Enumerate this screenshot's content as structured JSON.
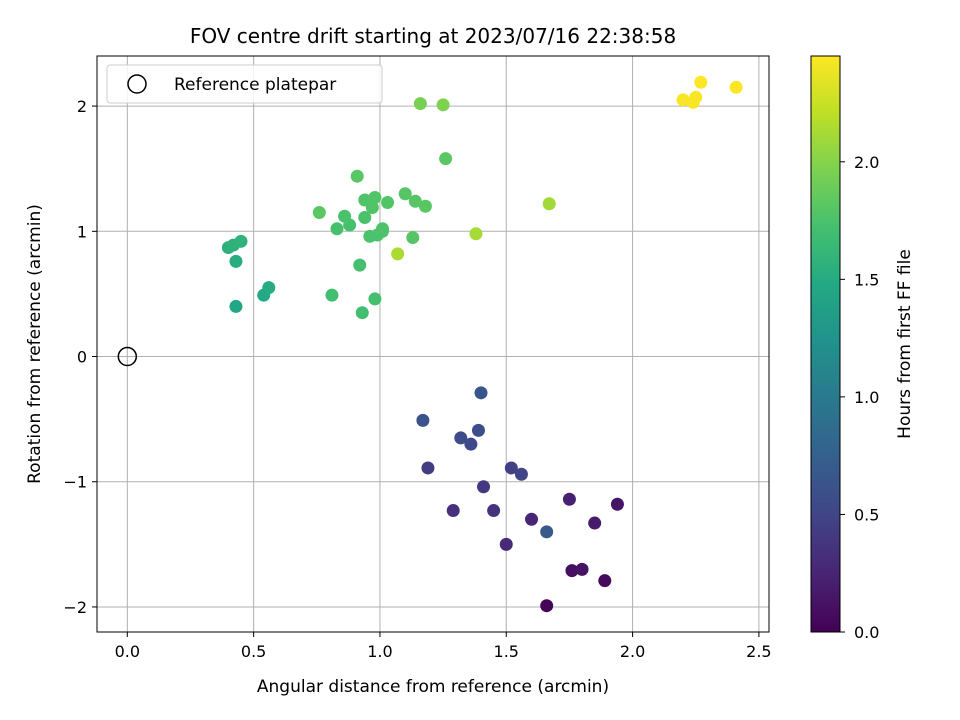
{
  "chart_data": {
    "type": "scatter",
    "title": "FOV centre drift starting at 2023/07/16 22:38:58",
    "xlabel": "Angular distance from reference (arcmin)",
    "ylabel": "Rotation from reference (arcmin)",
    "xlim": [
      -0.12,
      2.54
    ],
    "ylim": [
      -2.2,
      2.4
    ],
    "xticks": [
      0.0,
      0.5,
      1.0,
      1.5,
      2.0,
      2.5
    ],
    "xtick_labels": [
      "0.0",
      "0.5",
      "1.0",
      "1.5",
      "2.0",
      "2.5"
    ],
    "yticks": [
      -2,
      -1,
      0,
      1,
      2
    ],
    "ytick_labels": [
      "−2",
      "−1",
      "0",
      "1",
      "2"
    ],
    "grid": true,
    "legend": {
      "location": "upper-left",
      "entries": [
        "Reference platepar"
      ]
    },
    "reference_point": {
      "x": 0.0,
      "y": 0.0
    },
    "colorbar": {
      "label": "Hours from first FF file",
      "range": [
        0.0,
        2.45
      ],
      "ticks": [
        0.0,
        0.5,
        1.0,
        1.5,
        2.0
      ],
      "tick_labels": [
        "0.0",
        "0.5",
        "1.0",
        "1.5",
        "2.0"
      ],
      "colormap": "viridis"
    },
    "points": [
      {
        "x": 1.66,
        "y": -1.99,
        "h": 0.02
      },
      {
        "x": 1.89,
        "y": -1.79,
        "h": 0.06
      },
      {
        "x": 1.76,
        "y": -1.71,
        "h": 0.09
      },
      {
        "x": 1.8,
        "y": -1.7,
        "h": 0.12
      },
      {
        "x": 1.94,
        "y": -1.18,
        "h": 0.14
      },
      {
        "x": 1.85,
        "y": -1.33,
        "h": 0.18
      },
      {
        "x": 1.75,
        "y": -1.14,
        "h": 0.22
      },
      {
        "x": 1.6,
        "y": -1.3,
        "h": 0.26
      },
      {
        "x": 1.5,
        "y": -1.5,
        "h": 0.29
      },
      {
        "x": 1.29,
        "y": -1.23,
        "h": 0.33
      },
      {
        "x": 1.45,
        "y": -1.23,
        "h": 0.36
      },
      {
        "x": 1.41,
        "y": -1.04,
        "h": 0.4
      },
      {
        "x": 1.19,
        "y": -0.89,
        "h": 0.44
      },
      {
        "x": 1.52,
        "y": -0.89,
        "h": 0.46
      },
      {
        "x": 1.56,
        "y": -0.94,
        "h": 0.5
      },
      {
        "x": 1.36,
        "y": -0.7,
        "h": 0.53
      },
      {
        "x": 1.32,
        "y": -0.65,
        "h": 0.56
      },
      {
        "x": 1.39,
        "y": -0.59,
        "h": 0.58
      },
      {
        "x": 1.17,
        "y": -0.51,
        "h": 0.62
      },
      {
        "x": 1.4,
        "y": -0.29,
        "h": 0.65
      },
      {
        "x": 1.66,
        "y": -1.4,
        "h": 0.68
      },
      {
        "x": 0.43,
        "y": 0.4,
        "h": 1.45
      },
      {
        "x": 0.54,
        "y": 0.49,
        "h": 1.48
      },
      {
        "x": 0.56,
        "y": 0.55,
        "h": 1.5
      },
      {
        "x": 0.43,
        "y": 0.76,
        "h": 1.52
      },
      {
        "x": 0.4,
        "y": 0.87,
        "h": 1.55
      },
      {
        "x": 0.42,
        "y": 0.89,
        "h": 1.57
      },
      {
        "x": 0.45,
        "y": 0.92,
        "h": 1.58
      },
      {
        "x": 0.81,
        "y": 0.49,
        "h": 1.7
      },
      {
        "x": 0.93,
        "y": 0.35,
        "h": 1.7
      },
      {
        "x": 0.98,
        "y": 0.46,
        "h": 1.72
      },
      {
        "x": 0.92,
        "y": 0.73,
        "h": 1.72
      },
      {
        "x": 0.83,
        "y": 1.02,
        "h": 1.73
      },
      {
        "x": 0.88,
        "y": 1.05,
        "h": 1.73
      },
      {
        "x": 0.86,
        "y": 1.12,
        "h": 1.74
      },
      {
        "x": 0.94,
        "y": 1.11,
        "h": 1.74
      },
      {
        "x": 0.96,
        "y": 0.96,
        "h": 1.75
      },
      {
        "x": 0.99,
        "y": 0.97,
        "h": 1.75
      },
      {
        "x": 1.01,
        "y": 1.02,
        "h": 1.76
      },
      {
        "x": 1.01,
        "y": 1.0,
        "h": 1.76
      },
      {
        "x": 0.97,
        "y": 1.19,
        "h": 1.77
      },
      {
        "x": 0.94,
        "y": 1.25,
        "h": 1.77
      },
      {
        "x": 0.98,
        "y": 1.27,
        "h": 1.78
      },
      {
        "x": 1.03,
        "y": 1.23,
        "h": 1.78
      },
      {
        "x": 1.13,
        "y": 0.95,
        "h": 1.79
      },
      {
        "x": 1.1,
        "y": 1.3,
        "h": 1.8
      },
      {
        "x": 1.14,
        "y": 1.24,
        "h": 1.8
      },
      {
        "x": 1.18,
        "y": 1.2,
        "h": 1.81
      },
      {
        "x": 0.91,
        "y": 1.44,
        "h": 1.81
      },
      {
        "x": 0.76,
        "y": 1.15,
        "h": 1.82
      },
      {
        "x": 1.26,
        "y": 1.58,
        "h": 1.82
      },
      {
        "x": 1.16,
        "y": 2.02,
        "h": 1.95
      },
      {
        "x": 1.25,
        "y": 2.01,
        "h": 1.97
      },
      {
        "x": 1.38,
        "y": 0.98,
        "h": 2.12
      },
      {
        "x": 1.67,
        "y": 1.22,
        "h": 2.1
      },
      {
        "x": 1.07,
        "y": 0.82,
        "h": 2.14
      },
      {
        "x": 2.2,
        "y": 2.05,
        "h": 2.43
      },
      {
        "x": 2.24,
        "y": 2.03,
        "h": 2.43
      },
      {
        "x": 2.25,
        "y": 2.07,
        "h": 2.43
      },
      {
        "x": 2.27,
        "y": 2.19,
        "h": 2.44
      },
      {
        "x": 2.41,
        "y": 2.15,
        "h": 2.45
      }
    ]
  }
}
